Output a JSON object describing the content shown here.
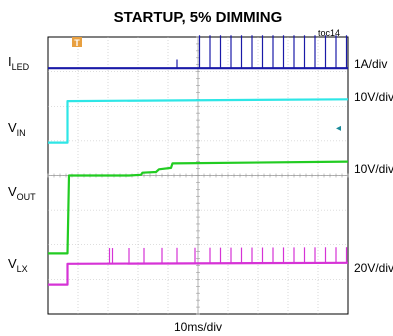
{
  "chart_data": {
    "type": "line",
    "title": "STARTUP, 5% DIMMING",
    "figure_id": "toc14",
    "xlabel": "10ms/div",
    "grid": true,
    "grid_divisions": {
      "x": 10,
      "y": 8
    },
    "trigger_marker": "T",
    "channel_marker": "◂",
    "traces": [
      {
        "id": "iled",
        "label_main": "I",
        "label_sub": "LED",
        "scale": "1A/div",
        "color": "#1a1aa8",
        "baseline_div": 7.1,
        "x_div": [
          0,
          5.0,
          5.0,
          5.1,
          10
        ],
        "y_div": [
          7.1,
          7.1,
          7.1,
          7.1,
          7.1
        ],
        "pulses": {
          "x_div": [
            5.05,
            5.4,
            5.75,
            6.1,
            6.45,
            6.8,
            7.15,
            7.5,
            7.85,
            8.2,
            8.55,
            8.9,
            9.25,
            9.6,
            9.95
          ],
          "height_div": 0.95
        },
        "glitches": {
          "x_div": [
            4.3
          ],
          "height_div": 0.25
        }
      },
      {
        "id": "vin",
        "label_main": "V",
        "label_sub": "IN",
        "scale": "10V/div",
        "color": "#2ee6e6",
        "x_div": [
          0,
          0.65,
          0.65,
          10
        ],
        "y_div": [
          4.95,
          4.95,
          6.15,
          6.2
        ]
      },
      {
        "id": "vout",
        "label_main": "V",
        "label_sub": "OUT",
        "scale": "10V/div",
        "color": "#22cc22",
        "x_div": [
          0,
          0.65,
          0.7,
          2.7,
          3.1,
          3.15,
          3.6,
          3.7,
          4.1,
          4.15,
          10
        ],
        "y_div": [
          1.75,
          1.75,
          4.0,
          4.0,
          4.02,
          4.08,
          4.1,
          4.18,
          4.22,
          4.35,
          4.4
        ]
      },
      {
        "id": "vlx",
        "label_main": "V",
        "label_sub": "LX",
        "scale": "20V/div",
        "color": "#d633d6",
        "x_div": [
          0,
          0.65,
          0.65,
          10
        ],
        "y_div": [
          0.85,
          0.85,
          1.45,
          1.48
        ],
        "pulses": {
          "x_div": [
            2.05,
            2.15,
            2.7,
            3.2,
            3.8,
            4.3,
            4.9,
            5.4,
            5.75,
            6.1,
            6.45,
            6.8,
            7.15,
            7.5,
            7.85,
            8.2,
            8.55,
            8.9,
            9.25,
            9.6,
            9.95
          ],
          "height_div": 0.45
        }
      }
    ]
  }
}
